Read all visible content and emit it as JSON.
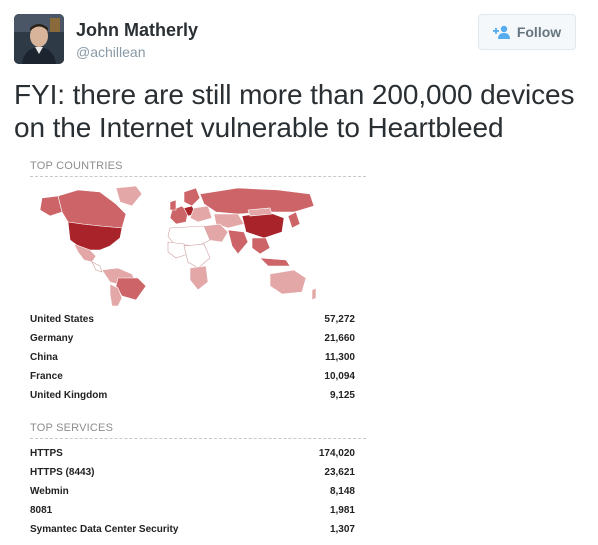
{
  "tweet": {
    "author_name": "John Matherly",
    "author_handle": "@achillean",
    "follow_label": "Follow",
    "text": "FYI: there are still more than 200,000 devices on the Internet vulnerable to Heartbleed"
  },
  "report": {
    "top_countries": {
      "title": "TOP COUNTRIES",
      "rows": [
        {
          "label": "United States",
          "value": "57,272"
        },
        {
          "label": "Germany",
          "value": "21,660"
        },
        {
          "label": "China",
          "value": "11,300"
        },
        {
          "label": "France",
          "value": "10,094"
        },
        {
          "label": "United Kingdom",
          "value": "9,125"
        }
      ]
    },
    "top_services": {
      "title": "TOP SERVICES",
      "rows": [
        {
          "label": "HTTPS",
          "value": "174,020"
        },
        {
          "label": "HTTPS (8443)",
          "value": "23,621"
        },
        {
          "label": "Webmin",
          "value": "8,148"
        },
        {
          "label": "8081",
          "value": "1,981"
        },
        {
          "label": "Symantec Data Center Security",
          "value": "1,307"
        }
      ]
    }
  },
  "colors": {
    "follow_icon": "#55acee",
    "map_dark": "#a8232a",
    "map_mid": "#cc6468",
    "map_light": "#e3a7a8",
    "map_none": "#ffffff"
  },
  "icons": {
    "follow": "add-user-icon",
    "avatar": "profile-photo"
  }
}
